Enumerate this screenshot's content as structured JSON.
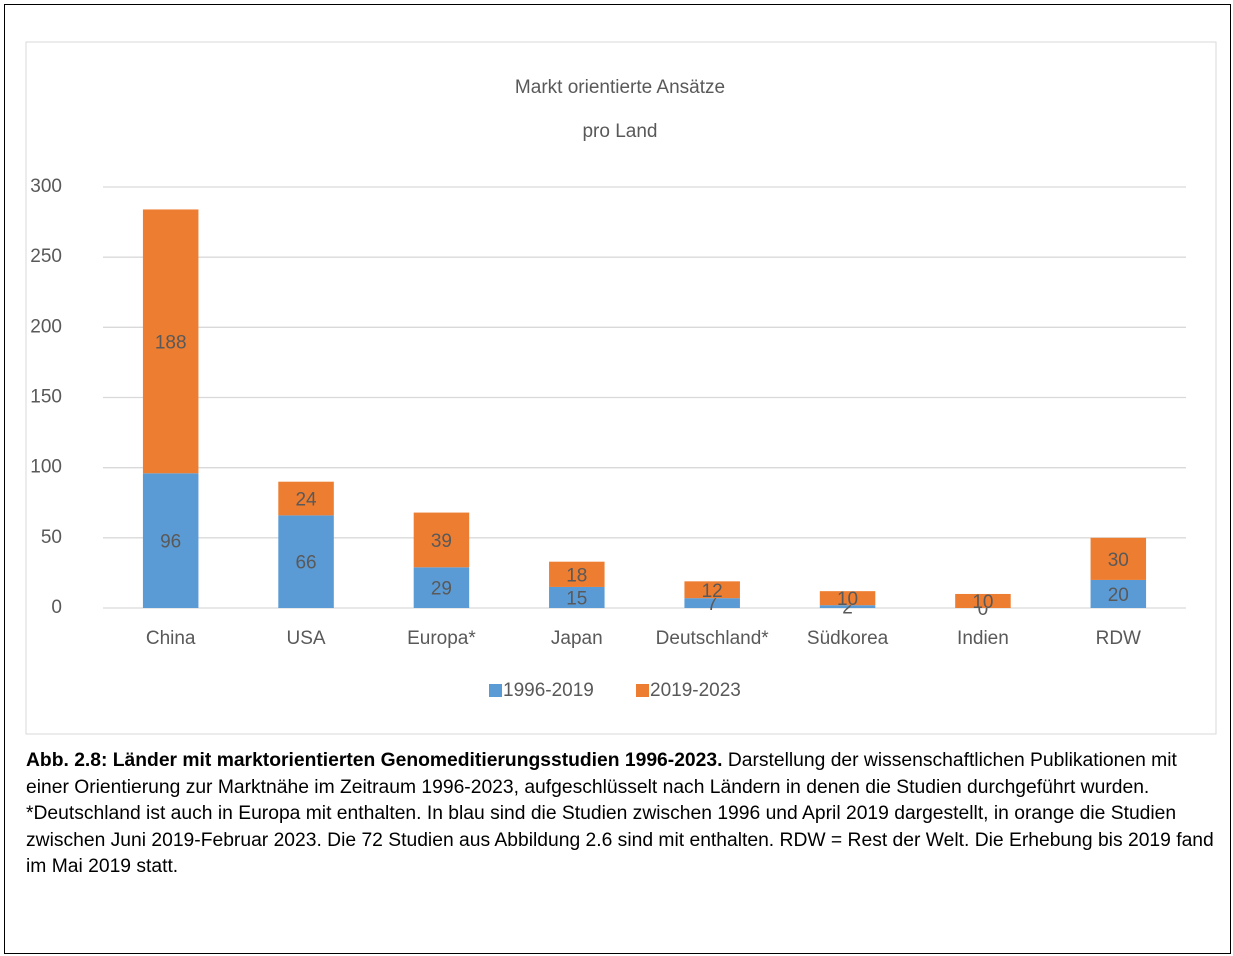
{
  "chart_data": {
    "type": "stacked_bar",
    "title": [
      "Markt orientierte Ansätze",
      "pro Land"
    ],
    "categories": [
      "China",
      "USA",
      "Europa*",
      "Japan",
      "Deutschland*",
      "Südkorea",
      "Indien",
      "RDW"
    ],
    "series": [
      {
        "name": "1996-2019",
        "color": "#5b9bd5",
        "values": [
          96,
          66,
          29,
          15,
          7,
          2,
          0,
          20
        ]
      },
      {
        "name": "2019-2023",
        "color": "#ed7d31",
        "values": [
          188,
          24,
          39,
          18,
          12,
          10,
          10,
          30
        ]
      }
    ],
    "ylim": [
      0,
      300
    ],
    "yticks": [
      0,
      50,
      100,
      150,
      200,
      250,
      300
    ],
    "grid": true,
    "legend": "bottom"
  },
  "caption": {
    "label": "Abb. 2.8: Länder mit marktorientierten Genomeditierungsstudien 1996-2023.",
    "text": "Darstellung der wissenschaftlichen Publikationen mit einer Orientierung zur Marktnähe im Zeitraum 1996-2023, aufgeschlüsselt nach Ländern in denen die Studien durchgeführt wurden. *Deutschland ist auch in Europa mit enthalten. In blau sind die Studien zwischen 1996 und April 2019 dargestellt, in orange die Studien zwischen Juni 2019-Februar 2023. Die 72 Studien aus Abbildung 2.6 sind mit enthalten. RDW = Rest der Welt. Die Erhebung bis 2019 fand im Mai 2019 statt."
  }
}
